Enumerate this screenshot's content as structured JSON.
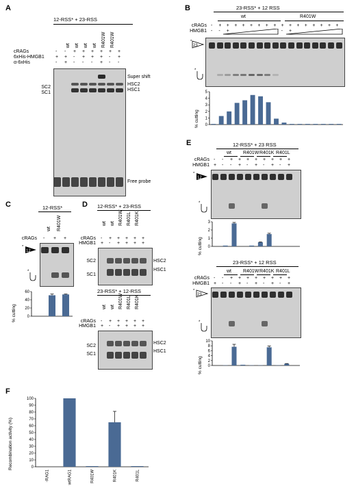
{
  "panels": {
    "A": {
      "letter": "A",
      "title": "12-RSS* + 23-RSS",
      "row_labels": [
        "cRAGs",
        "6xHis-HMGB1",
        "α-6xHis"
      ],
      "lane_variants": [
        "wt",
        "wt",
        "wt",
        "wt",
        "R401W",
        "R401W"
      ],
      "crags": [
        "-",
        "-",
        "+",
        "+",
        "+",
        "+",
        "+",
        "+"
      ],
      "hmgb1": [
        "+",
        "+",
        "-",
        "+",
        "+",
        "+",
        "-",
        "+"
      ],
      "antihis": [
        "-",
        "+",
        "-",
        "-",
        "-",
        "+",
        "-",
        "-"
      ],
      "left_labels": [
        "SC2",
        "SC1"
      ],
      "right_labels": [
        "Super shift",
        "HSC2",
        "HSC1",
        "Free probe"
      ]
    },
    "B": {
      "letter": "B",
      "title": "23-RSS* + 12 RSS",
      "groups": [
        "wt",
        "R401W"
      ],
      "row_labels": [
        "cRAGs",
        "HMGB1"
      ],
      "crags": [
        "-",
        "+",
        "+",
        "+",
        "+",
        "+",
        "+",
        "+",
        "+",
        "+",
        "+",
        "+",
        "+",
        "+",
        "+",
        "+",
        "+"
      ],
      "hmgb1": [
        "-",
        "-",
        "+",
        "",
        "",
        "",
        "",
        "",
        "",
        "-",
        "+",
        "",
        "",
        "",
        "",
        "",
        ""
      ],
      "probe_label": "23",
      "ylabel": "% cutting",
      "chart_data": {
        "type": "bar",
        "ylabel": "% cutting",
        "ylim": [
          0,
          5
        ],
        "yticks": [
          0,
          1,
          2,
          3,
          4,
          5
        ],
        "values": [
          0.1,
          1.3,
          2.0,
          3.3,
          3.7,
          4.5,
          4.3,
          3.4,
          0.9,
          0.3,
          0.1,
          0.1,
          0.1,
          0.1,
          0.1,
          0.1,
          0.1
        ]
      }
    },
    "C": {
      "letter": "C",
      "title": "12-RSS*",
      "lanes": [
        "wt",
        "R401W"
      ],
      "row_labels": [
        "cRAGs"
      ],
      "crags": [
        "-",
        "+",
        "+"
      ],
      "probe_label": "12",
      "ylabel": "% cutting",
      "chart_data": {
        "type": "bar",
        "ylabel": "% cutting",
        "ylim": [
          0,
          60
        ],
        "yticks": [
          0,
          20,
          40,
          60
        ],
        "values": [
          0,
          51,
          53
        ],
        "errors": [
          0,
          3,
          1
        ]
      }
    },
    "D": {
      "letter": "D",
      "top_title": "12-RSS* + 23-RSS",
      "bottom_title": "23-RSS* + 12-RSS",
      "lanes": [
        "wt",
        "wt",
        "R401W",
        "R401L",
        "R401K"
      ],
      "row_labels": [
        "cRAGs",
        "HMGB1"
      ],
      "crags": [
        "-",
        "+",
        "+",
        "+",
        "+",
        "+"
      ],
      "hmgb1": [
        "+",
        "-",
        "+",
        "+",
        "+",
        "+"
      ],
      "left_labels": [
        "SC2",
        "SC1"
      ],
      "right_labels": [
        "HSC2",
        "HSC1"
      ]
    },
    "E": {
      "letter": "E",
      "top_title": "12-RSS* + 23 RSS",
      "bottom_title": "23-RSS* + 12 RSS",
      "groups": [
        "wt",
        "R401W",
        "R401K",
        "R401L"
      ],
      "row_labels": [
        "cRAGs",
        "HMGB1"
      ],
      "crags": [
        "-",
        "-",
        "+",
        "+",
        "+",
        "+",
        "+",
        "+",
        "+",
        "+"
      ],
      "hmgb1": [
        "+",
        "-",
        "-",
        "+",
        "-",
        "+",
        "-",
        "+",
        "-",
        "+"
      ],
      "probe_top": "12",
      "probe_bottom": "23",
      "ylabel": "% cutting",
      "chart_top": {
        "type": "bar",
        "ylabel": "% cutting",
        "ylim": [
          0,
          3
        ],
        "yticks": [
          0,
          1,
          2,
          3
        ],
        "values": [
          0,
          0.1,
          2.8,
          0,
          0.1,
          0.5,
          1.5,
          0,
          0,
          0
        ],
        "errors": [
          0,
          0,
          0.12,
          0,
          0,
          0.05,
          0.1,
          0,
          0,
          0
        ]
      },
      "chart_bottom": {
        "type": "bar",
        "ylabel": "% cutting",
        "ylim": [
          0,
          10
        ],
        "yticks": [
          0,
          2,
          4,
          6,
          8,
          10
        ],
        "values": [
          0,
          0.1,
          7.6,
          0.3,
          0.1,
          0.1,
          7.4,
          0.1,
          0.7,
          0
        ],
        "errors": [
          0,
          0,
          1.0,
          0,
          0,
          0,
          0.5,
          0,
          0.1,
          0
        ]
      }
    },
    "F": {
      "letter": "F",
      "ylabel": "Recombination activity (%)",
      "chart_data": {
        "type": "bar",
        "ylabel": "Recombination activity (%)",
        "categories": [
          "-RAG1",
          "wtRAG1",
          "R401W",
          "R401K",
          "R401L"
        ],
        "values": [
          0,
          100,
          1,
          65,
          1
        ],
        "errors": [
          0,
          0,
          0,
          16,
          0
        ],
        "ylim": [
          0,
          100
        ],
        "yticks": [
          0,
          10,
          20,
          30,
          40,
          50,
          60,
          70,
          80,
          90,
          100
        ]
      }
    }
  },
  "colors": {
    "bar": "#4a6a94",
    "gel_bg": "#d2d2d2"
  }
}
